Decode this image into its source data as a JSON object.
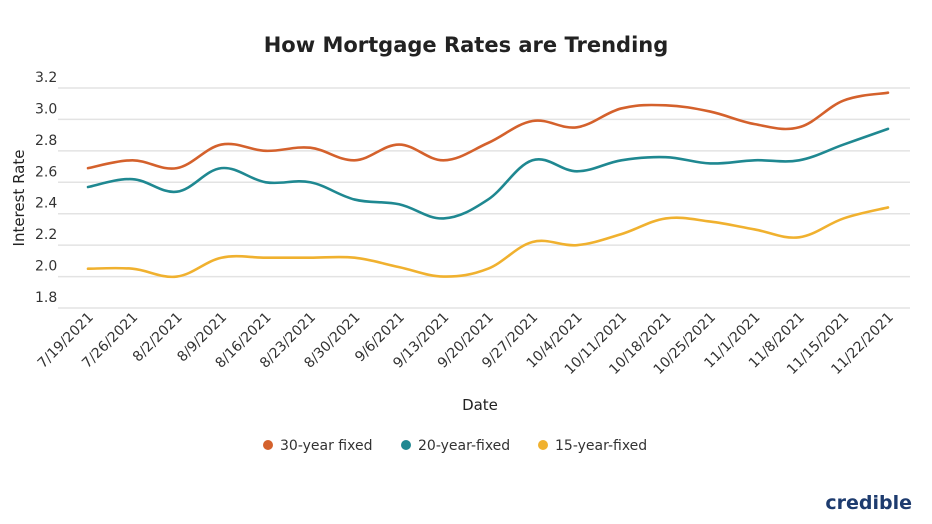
{
  "chart_data": {
    "type": "line",
    "title": "How Mortgage Rates are Trending",
    "xlabel": "Date",
    "ylabel": "Interest Rate",
    "ylim": [
      1.8,
      3.2
    ],
    "yticks": [
      "1.8",
      "2.0",
      "2.2",
      "2.4",
      "2.6",
      "2.8",
      "3.0",
      "3.2"
    ],
    "grid": true,
    "legend_position": "bottom",
    "categories": [
      "7/19/2021",
      "7/26/2021",
      "8/2/2021",
      "8/9/2021",
      "8/16/2021",
      "8/23/2021",
      "8/30/2021",
      "9/6/2021",
      "9/13/2021",
      "9/20/2021",
      "9/27/2021",
      "10/4/2021",
      "10/11/2021",
      "10/18/2021",
      "10/25/2021",
      "11/1/2021",
      "11/8/2021",
      "11/15/2021",
      "11/22/2021"
    ],
    "series": [
      {
        "name": "30-year fixed",
        "color": "#d4612c",
        "values": [
          2.69,
          2.74,
          2.69,
          2.84,
          2.8,
          2.82,
          2.74,
          2.84,
          2.74,
          2.85,
          2.99,
          2.95,
          3.07,
          3.09,
          3.05,
          2.97,
          2.95,
          3.12,
          3.17
        ]
      },
      {
        "name": "20-year-fixed",
        "color": "#1f8891",
        "values": [
          2.57,
          2.62,
          2.54,
          2.69,
          2.6,
          2.6,
          2.49,
          2.46,
          2.37,
          2.49,
          2.74,
          2.67,
          2.74,
          2.76,
          2.72,
          2.74,
          2.74,
          2.84,
          2.94
        ]
      },
      {
        "name": "15-year-fixed",
        "color": "#f0b12f",
        "values": [
          2.05,
          2.05,
          2.0,
          2.12,
          2.12,
          2.12,
          2.12,
          2.06,
          2.0,
          2.05,
          2.22,
          2.2,
          2.27,
          2.37,
          2.35,
          2.3,
          2.25,
          2.37,
          2.44
        ]
      }
    ]
  },
  "brand": {
    "logo_text": "credible"
  }
}
